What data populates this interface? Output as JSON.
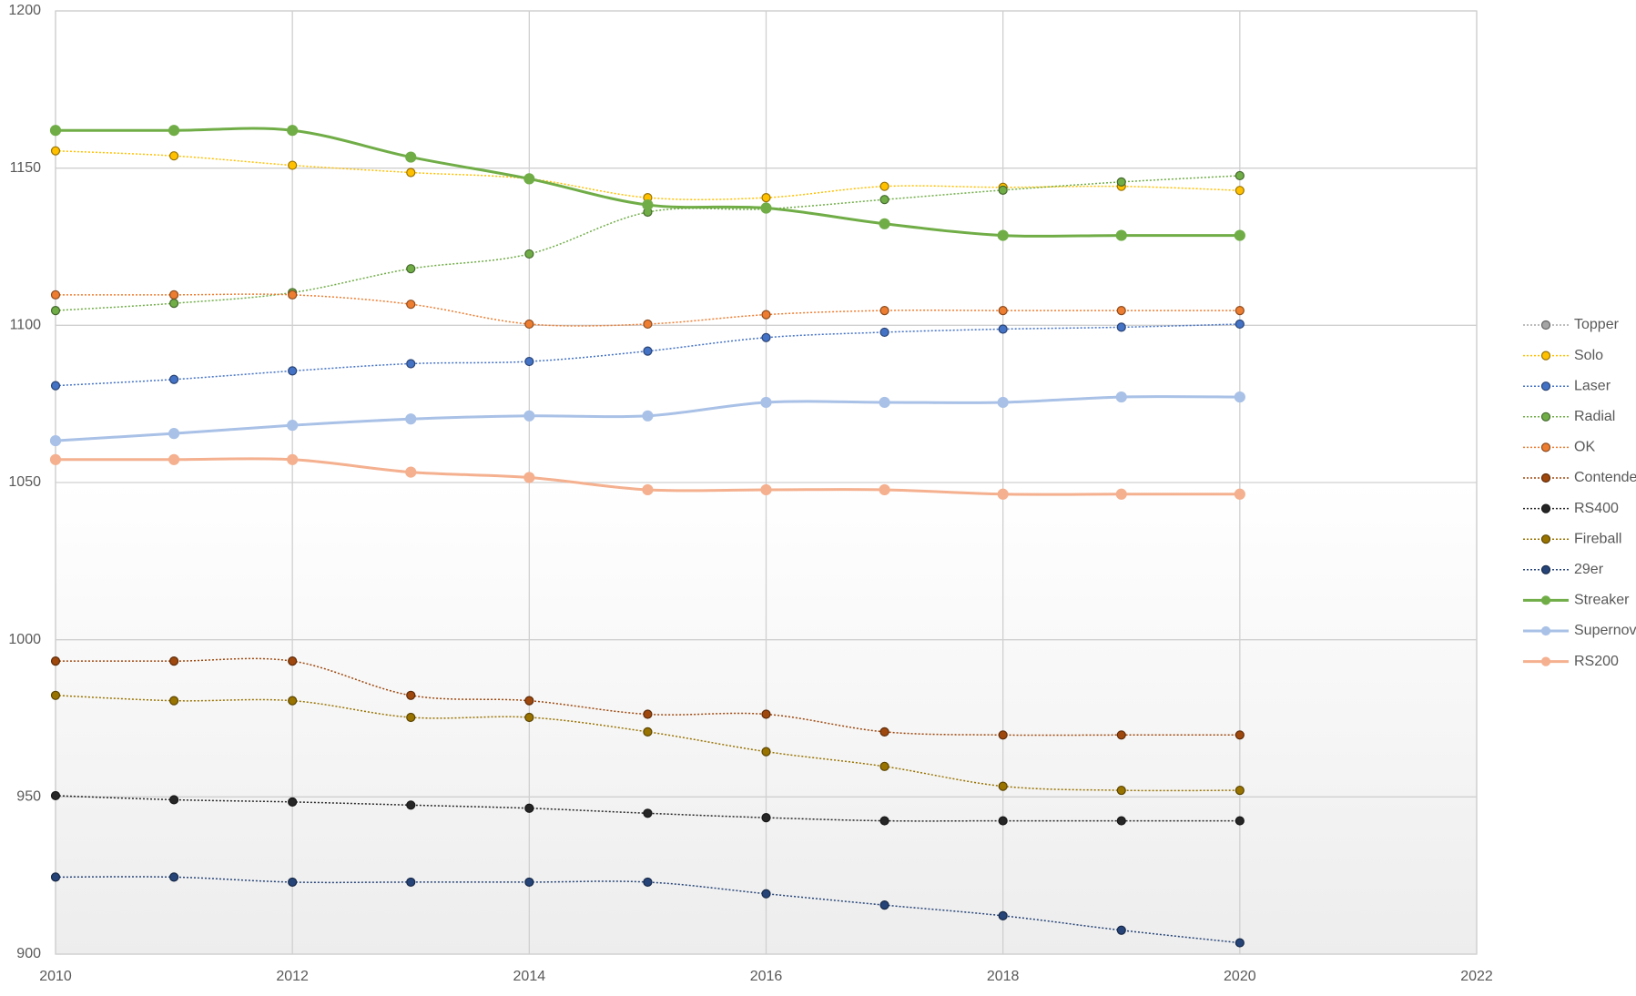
{
  "chart_data": {
    "type": "line",
    "x": [
      2010,
      2011,
      2012,
      2013,
      2014,
      2015,
      2016,
      2017,
      2018,
      2019,
      2020
    ],
    "xlim": [
      2010,
      2022
    ],
    "xticks": [
      2010,
      2012,
      2014,
      2016,
      2018,
      2020,
      2022
    ],
    "ylim": [
      900,
      1200
    ],
    "yticks": [
      900,
      950,
      1000,
      1050,
      1100,
      1150,
      1200
    ],
    "grid": true,
    "legend": "right",
    "series": [
      {
        "name": "Topper",
        "color": "#a5a5a5",
        "line_style": "dotted",
        "values": [
          null,
          null,
          null,
          null,
          null,
          null,
          null,
          null,
          null,
          null,
          null
        ]
      },
      {
        "name": "Solo",
        "color": "#ffc000",
        "line_style": "dotted",
        "values": [
          1155.5,
          1153.9,
          1150.9,
          1148.6,
          1146.6,
          1140.6,
          1140.6,
          1144.2,
          1143.9,
          1144.2,
          1142.9
        ]
      },
      {
        "name": "Laser",
        "color": "#4472c4",
        "line_style": "dotted",
        "values": [
          1080.8,
          1082.8,
          1085.5,
          1087.8,
          1088.5,
          1091.8,
          1096.1,
          1097.8,
          1098.8,
          1099.4,
          1100.4
        ]
      },
      {
        "name": "Radial",
        "color": "#70ad47",
        "line_style": "dotted",
        "values": [
          1104.7,
          1107,
          1110.4,
          1118,
          1122.7,
          1136,
          1137,
          1140,
          1143,
          1145.6,
          1147.6
        ]
      },
      {
        "name": "OK",
        "color": "#ed7d31",
        "line_style": "dotted",
        "values": [
          1109.7,
          1109.7,
          1109.7,
          1106.7,
          1100.4,
          1100.4,
          1103.4,
          1104.7,
          1104.7,
          1104.7,
          1104.7
        ]
      },
      {
        "name": "Contender",
        "color": "#9e480e",
        "line_style": "dotted",
        "values": [
          993.2,
          993.2,
          993.2,
          982.3,
          980.6,
          976.3,
          976.3,
          970.7,
          969.7,
          969.7,
          969.7
        ]
      },
      {
        "name": "RS400",
        "color": "#262626",
        "line_style": "dotted",
        "values": [
          950.4,
          949.1,
          948.4,
          947.4,
          946.4,
          944.8,
          943.4,
          942.4,
          942.4,
          942.4,
          942.4
        ]
      },
      {
        "name": "Fireball",
        "color": "#997300",
        "line_style": "dotted",
        "values": [
          982.3,
          980.6,
          980.6,
          975.3,
          975.3,
          970.7,
          964.4,
          959.7,
          953.4,
          952.1,
          952.1
        ]
      },
      {
        "name": "29er",
        "color": "#264478",
        "line_style": "dotted",
        "values": [
          924.5,
          924.5,
          922.9,
          922.9,
          922.9,
          922.9,
          919.2,
          915.6,
          912.2,
          907.6,
          903.6
        ]
      },
      {
        "name": "Streaker",
        "color": "#70ad47",
        "line_style": "solid",
        "values": [
          1162,
          1162,
          1162,
          1153.5,
          1146.6,
          1138.3,
          1137.3,
          1132.3,
          1128.6,
          1128.6,
          1128.6
        ]
      },
      {
        "name": "Supernova",
        "color": "#a9c1e6",
        "line_style": "solid",
        "values": [
          1063.3,
          1065.6,
          1068.2,
          1070.2,
          1071.2,
          1071.2,
          1075.5,
          1075.5,
          1075.5,
          1077.2,
          1077.2
        ]
      },
      {
        "name": "RS200",
        "color": "#f4b08f",
        "line_style": "solid",
        "values": [
          1057.3,
          1057.3,
          1057.3,
          1053.3,
          1051.6,
          1047.7,
          1047.7,
          1047.7,
          1046.3,
          1046.3,
          1046.3
        ]
      }
    ]
  }
}
